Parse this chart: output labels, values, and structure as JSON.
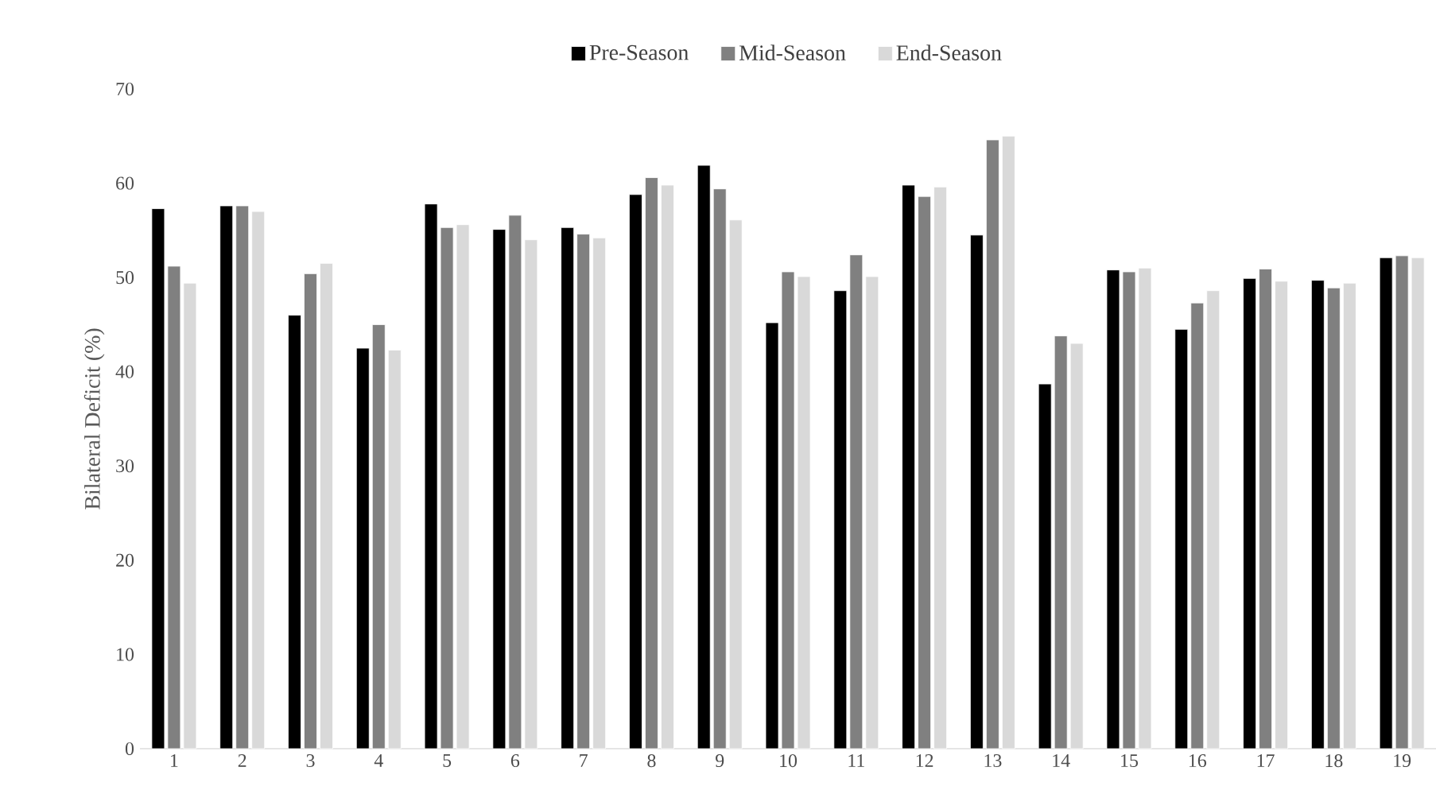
{
  "chart_data": {
    "type": "bar",
    "ylabel": "Bilateral Deficit (%)",
    "categories": [
      "1",
      "2",
      "3",
      "4",
      "5",
      "6",
      "7",
      "8",
      "9",
      "10",
      "11",
      "12",
      "13",
      "14",
      "15",
      "16",
      "17",
      "18",
      "19"
    ],
    "series": [
      {
        "name": "Pre-Season",
        "color": "#000000",
        "values": [
          57.3,
          57.6,
          46.0,
          42.5,
          57.8,
          55.1,
          55.3,
          58.8,
          61.9,
          45.2,
          48.6,
          59.8,
          54.5,
          38.7,
          50.8,
          44.5,
          49.9,
          49.7,
          52.1
        ]
      },
      {
        "name": "Mid-Season",
        "color": "#808080",
        "values": [
          51.2,
          57.6,
          50.4,
          45.0,
          55.3,
          56.6,
          54.6,
          60.6,
          59.4,
          50.6,
          52.4,
          58.6,
          64.6,
          43.8,
          50.6,
          47.3,
          50.9,
          48.9,
          52.3
        ]
      },
      {
        "name": "End-Season",
        "color": "#d9d9d9",
        "values": [
          49.4,
          57.0,
          51.5,
          42.3,
          55.6,
          54.0,
          54.2,
          59.8,
          56.1,
          50.1,
          50.1,
          59.6,
          65.0,
          43.0,
          51.0,
          48.6,
          49.6,
          49.4,
          52.1
        ]
      }
    ],
    "ylim": [
      0,
      70
    ],
    "yticks": [
      0,
      10,
      20,
      30,
      40,
      50,
      60,
      70
    ],
    "legend": "top"
  }
}
